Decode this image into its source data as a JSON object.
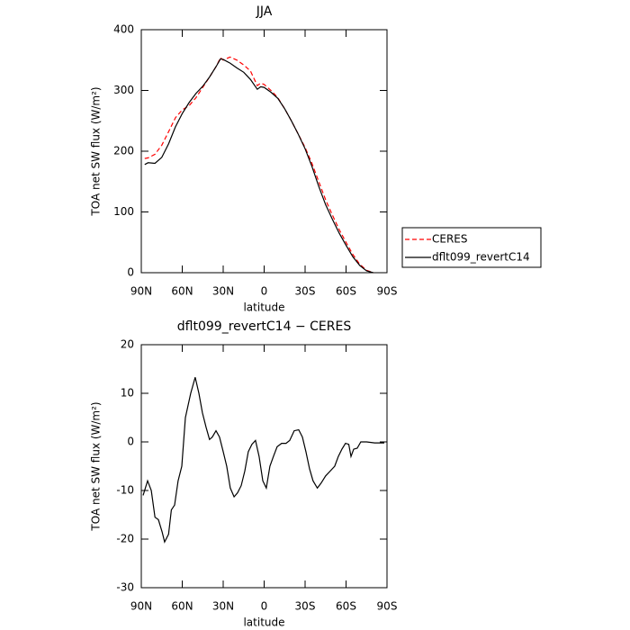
{
  "chart_data": [
    {
      "type": "line",
      "title": "JJA",
      "xlabel": "latitude",
      "ylabel": "TOA net SW flux (W/m²)",
      "x": [
        87.5,
        85,
        80,
        75,
        70,
        65,
        60,
        55,
        50,
        45,
        40,
        35,
        32,
        30,
        25,
        20,
        15,
        10,
        5,
        2.5,
        0,
        -5,
        -10,
        -15,
        -20,
        -25,
        -30,
        -35,
        -40,
        -45,
        -50,
        -55,
        -60,
        -65,
        -70,
        -75,
        -80
      ],
      "series": [
        {
          "name": "CERES",
          "color": "#ff0000",
          "style": "dashed",
          "values": [
            188,
            189,
            195,
            210,
            232,
            255,
            268,
            275,
            288,
            305,
            322,
            340,
            354,
            350,
            355,
            350,
            342,
            332,
            308,
            312,
            310,
            300,
            288,
            270,
            250,
            228,
            206,
            180,
            150,
            120,
            95,
            71,
            50,
            30,
            14,
            4,
            0
          ]
        },
        {
          "name": "dflt099_revertC14",
          "color": "#000000",
          "style": "solid",
          "values": [
            178,
            181,
            180,
            190,
            212,
            240,
            262,
            280,
            295,
            307,
            322,
            340,
            352,
            351,
            345,
            337,
            330,
            318,
            302,
            306,
            305,
            297,
            287,
            270,
            250,
            228,
            204,
            175,
            142,
            112,
            88,
            65,
            45,
            26,
            12,
            3,
            0
          ]
        }
      ],
      "xlim": [
        90,
        -90
      ],
      "xticks": [
        {
          "value": 90,
          "label": "90N"
        },
        {
          "value": 60,
          "label": "60N"
        },
        {
          "value": 30,
          "label": "30N"
        },
        0,
        {
          "value": -30,
          "label": "30S"
        },
        {
          "value": -60,
          "label": "60S"
        },
        {
          "value": -90,
          "label": "90S"
        }
      ],
      "ylim": [
        0,
        400
      ],
      "yticks": [
        0,
        100,
        200,
        300,
        400
      ],
      "legend": "right"
    },
    {
      "type": "line",
      "title": "dflt099_revertC14 − CERES",
      "xlabel": "latitude",
      "ylabel": "TOA net SW flux (W/m²)",
      "x": [
        88.7,
        85.4,
        82.7,
        80,
        77.5,
        74.8,
        72.9,
        70,
        68,
        65.6,
        63,
        60.3,
        57.7,
        53.8,
        50.5,
        47.8,
        45.2,
        42.5,
        40,
        38,
        35.3,
        32.7,
        30,
        27.4,
        24.8,
        22,
        19.5,
        16.8,
        14.2,
        11.6,
        9,
        6.3,
        3.7,
        1,
        -1.6,
        -4.2,
        -6.8,
        -9.5,
        -12.8,
        -16,
        -18.7,
        -22,
        -25.3,
        -28,
        -30.6,
        -33.2,
        -35.8,
        -39,
        -41.7,
        -45,
        -48.4,
        -51.7,
        -54.3,
        -57,
        -59.6,
        -62,
        -63.6,
        -65.6,
        -68.2,
        -70.8,
        -75,
        -81,
        -88
      ],
      "series": [
        {
          "name": "dflt099_revertC14 − CERES",
          "color": "#000000",
          "style": "solid",
          "values": [
            -11,
            -8,
            -10,
            -15.5,
            -16,
            -18.5,
            -20.6,
            -19,
            -14,
            -13,
            -8,
            -5,
            5,
            10,
            13.3,
            10,
            6,
            3,
            0.5,
            1,
            2.3,
            1,
            -2,
            -5,
            -9.5,
            -11.3,
            -10.5,
            -9,
            -6,
            -2,
            -0.5,
            0.3,
            -3,
            -8,
            -9.5,
            -5,
            -3,
            -1,
            -0.3,
            -0.3,
            0.3,
            2.3,
            2.5,
            1,
            -2,
            -5.5,
            -8,
            -9.5,
            -8.5,
            -7,
            -6,
            -5,
            -3,
            -1.5,
            -0.3,
            -0.5,
            -3,
            -1.5,
            -1.3,
            0,
            0,
            -0.2,
            -0.2
          ]
        }
      ],
      "xlim": [
        90,
        -90
      ],
      "xticks": [
        {
          "value": 90,
          "label": "90N"
        },
        {
          "value": 60,
          "label": "60N"
        },
        {
          "value": 30,
          "label": "30N"
        },
        0,
        {
          "value": -30,
          "label": "30S"
        },
        {
          "value": -60,
          "label": "60S"
        },
        {
          "value": -90,
          "label": "90S"
        }
      ],
      "ylim": [
        -30,
        20
      ],
      "yticks": [
        -30,
        -20,
        -10,
        0,
        10,
        20
      ]
    }
  ]
}
